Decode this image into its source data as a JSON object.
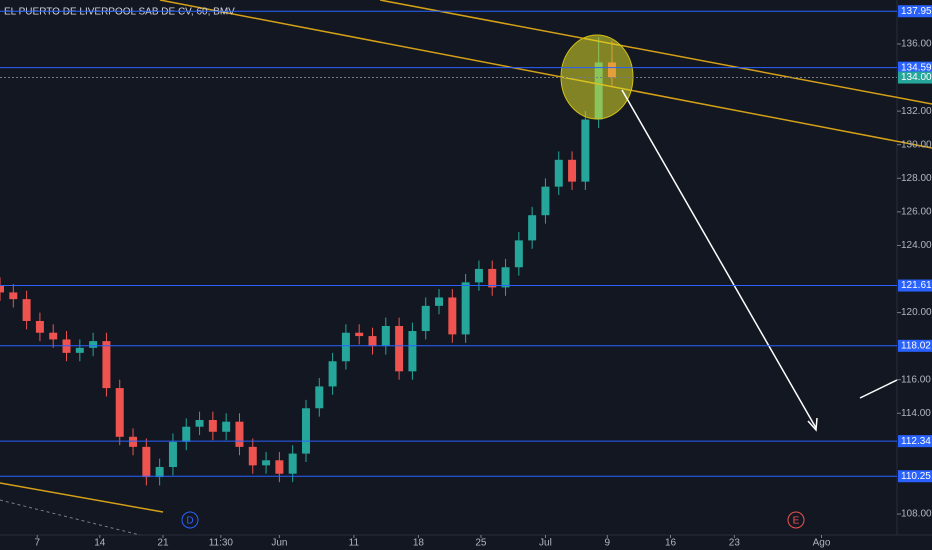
{
  "chart_data": {
    "type": "candlestick",
    "title": "EL PUERTO DE LIVERPOOL SAB DE CV, 60, BMV",
    "x": [
      0,
      2,
      4,
      6,
      8,
      10,
      12,
      14,
      16,
      18,
      20,
      22,
      24,
      26,
      28,
      30,
      32,
      34,
      36,
      38,
      40,
      42,
      44,
      46,
      48,
      50,
      52,
      54,
      56,
      58,
      60,
      62,
      64,
      66,
      68,
      70,
      72,
      74,
      76,
      78,
      80,
      82,
      84,
      86,
      88,
      90,
      92
    ],
    "open": [
      121.6,
      121.2,
      120.8,
      119.5,
      118.8,
      118.4,
      117.6,
      117.9,
      118.3,
      115.5,
      112.6,
      112.0,
      110.2,
      110.8,
      112.3,
      113.2,
      113.6,
      112.9,
      113.5,
      112.0,
      110.9,
      111.2,
      110.4,
      111.6,
      114.3,
      115.6,
      117.1,
      118.8,
      118.6,
      118.0,
      119.2,
      116.5,
      118.9,
      120.4,
      120.9,
      118.7,
      121.8,
      122.6,
      121.5,
      122.7,
      124.3,
      125.8,
      127.5,
      129.1,
      127.8,
      131.5,
      134.9
    ],
    "high": [
      122.1,
      121.7,
      121.3,
      120.0,
      119.3,
      118.9,
      118.4,
      118.8,
      118.8,
      116.0,
      113.1,
      112.5,
      111.3,
      112.8,
      113.7,
      114.1,
      114.1,
      114.0,
      114.0,
      112.5,
      111.7,
      111.7,
      112.1,
      114.8,
      116.1,
      117.6,
      119.3,
      119.3,
      119.1,
      119.7,
      119.7,
      119.4,
      120.9,
      121.4,
      121.4,
      122.3,
      123.1,
      123.1,
      123.2,
      124.8,
      126.3,
      128.0,
      129.6,
      129.6,
      132.0,
      136.4,
      136.2
    ],
    "low": [
      120.7,
      120.3,
      119.0,
      118.3,
      117.9,
      117.1,
      117.1,
      117.4,
      115.0,
      112.1,
      111.5,
      109.7,
      109.7,
      110.3,
      111.8,
      112.7,
      112.4,
      112.4,
      111.5,
      110.4,
      110.4,
      109.9,
      109.9,
      111.1,
      113.8,
      115.1,
      116.6,
      118.1,
      117.5,
      117.5,
      116.0,
      116.0,
      118.4,
      119.9,
      118.2,
      118.2,
      121.3,
      121.0,
      121.0,
      122.2,
      123.8,
      125.3,
      127.0,
      127.3,
      127.3,
      131.0,
      133.5
    ],
    "close": [
      121.2,
      120.8,
      119.5,
      118.8,
      118.4,
      117.6,
      117.9,
      118.3,
      115.5,
      112.6,
      112.0,
      110.2,
      110.8,
      112.3,
      113.2,
      113.6,
      112.9,
      113.5,
      112.0,
      110.9,
      111.2,
      110.4,
      111.6,
      114.3,
      115.6,
      117.1,
      118.8,
      118.6,
      118.0,
      119.2,
      116.5,
      118.9,
      120.4,
      120.9,
      118.7,
      121.8,
      122.6,
      121.5,
      122.7,
      124.3,
      125.8,
      127.5,
      129.1,
      127.8,
      131.5,
      134.9,
      134.0
    ],
    "up_color": "#26a69a",
    "down_color": "#ef5350",
    "xlim": [
      0,
      135
    ],
    "xticks": [
      {
        "value": 5.6,
        "label": "7"
      },
      {
        "value": 15,
        "label": "14"
      },
      {
        "value": 24.5,
        "label": "21"
      },
      {
        "value": 33.2,
        "label": "11:30"
      },
      {
        "value": 42,
        "label": "Jun"
      },
      {
        "value": 53.2,
        "label": "11"
      },
      {
        "value": 62.9,
        "label": "18"
      },
      {
        "value": 72.3,
        "label": "25"
      },
      {
        "value": 82,
        "label": "Jul"
      },
      {
        "value": 91.3,
        "label": "9"
      },
      {
        "value": 100.8,
        "label": "16"
      },
      {
        "value": 110.4,
        "label": "23"
      },
      {
        "value": 123.5,
        "label": "Ago"
      }
    ],
    "ylim": [
      106.75,
      138.62
    ],
    "yticks": [
      {
        "value": 108,
        "label": "108.00"
      },
      {
        "value": 114,
        "label": "114.00"
      },
      {
        "value": 116,
        "label": "116.00"
      },
      {
        "value": 120,
        "label": "120.00"
      },
      {
        "value": 124,
        "label": "124.00"
      },
      {
        "value": 126,
        "label": "126.00"
      },
      {
        "value": 128,
        "label": "128.00"
      },
      {
        "value": 130,
        "label": "130.00"
      },
      {
        "value": 132,
        "label": "132.00"
      },
      {
        "value": 136,
        "label": "136.00"
      }
    ],
    "levels": [
      137.95,
      134.59,
      {
        "value": 134,
        "label": "134.00"
      },
      121.61,
      118.02,
      112.34,
      110.25
    ],
    "annotations": [
      "D",
      "E"
    ]
  }
}
